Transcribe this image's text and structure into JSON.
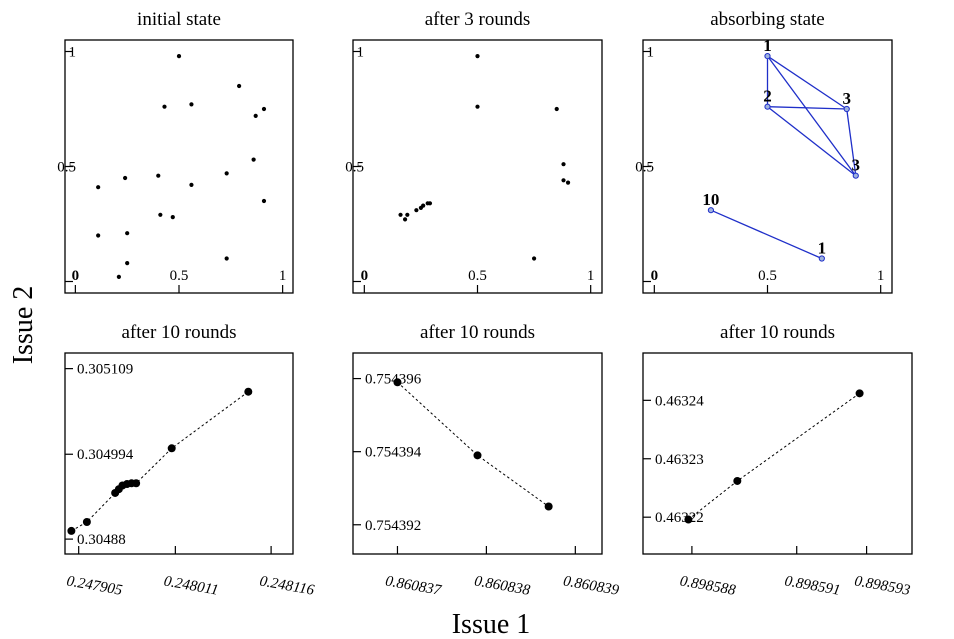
{
  "figure": {
    "xlabel": "Issue 1",
    "ylabel": "Issue 2"
  },
  "style": {
    "background": "#ffffff",
    "axis_color": "#000000",
    "point_color": "#000000",
    "edge_color": "#1f2fc9",
    "node_fill": "#9fb3dd"
  },
  "chart_data": [
    {
      "type": "scatter",
      "title": "initial state",
      "xlim": [
        -0.05,
        1.05
      ],
      "ylim": [
        -0.05,
        1.05
      ],
      "xticks": [
        0,
        0.5,
        1
      ],
      "xtick_labels": [
        "0",
        "0.5",
        "1"
      ],
      "yticks": [
        0,
        0.5,
        1
      ],
      "ytick_labels": [
        "0",
        "0.5",
        "1"
      ],
      "points": [
        [
          0.5,
          0.98
        ],
        [
          0.79,
          0.85
        ],
        [
          0.56,
          0.77
        ],
        [
          0.43,
          0.76
        ],
        [
          0.91,
          0.75
        ],
        [
          0.87,
          0.72
        ],
        [
          0.86,
          0.53
        ],
        [
          0.73,
          0.47
        ],
        [
          0.4,
          0.46
        ],
        [
          0.24,
          0.45
        ],
        [
          0.56,
          0.42
        ],
        [
          0.11,
          0.41
        ],
        [
          0.91,
          0.35
        ],
        [
          0.41,
          0.29
        ],
        [
          0.47,
          0.28
        ],
        [
          0.11,
          0.2
        ],
        [
          0.25,
          0.21
        ],
        [
          0.25,
          0.08
        ],
        [
          0.73,
          0.1
        ],
        [
          0.21,
          0.02
        ]
      ]
    },
    {
      "type": "scatter",
      "title": "after 3 rounds",
      "xlim": [
        -0.05,
        1.05
      ],
      "ylim": [
        -0.05,
        1.05
      ],
      "xticks": [
        0,
        0.5,
        1
      ],
      "xtick_labels": [
        "0",
        "0.5",
        "1"
      ],
      "yticks": [
        0,
        0.5,
        1
      ],
      "ytick_labels": [
        "0",
        "0.5",
        "1"
      ],
      "points": [
        [
          0.5,
          0.98
        ],
        [
          0.5,
          0.76
        ],
        [
          0.85,
          0.75
        ],
        [
          0.88,
          0.51
        ],
        [
          0.88,
          0.44
        ],
        [
          0.9,
          0.43
        ],
        [
          0.16,
          0.29
        ],
        [
          0.18,
          0.27
        ],
        [
          0.19,
          0.29
        ],
        [
          0.23,
          0.31
        ],
        [
          0.25,
          0.32
        ],
        [
          0.26,
          0.33
        ],
        [
          0.28,
          0.34
        ],
        [
          0.29,
          0.34
        ],
        [
          0.75,
          0.1
        ]
      ]
    },
    {
      "type": "network",
      "title": "absorbing state",
      "xlim": [
        -0.05,
        1.05
      ],
      "ylim": [
        -0.05,
        1.05
      ],
      "xticks": [
        0,
        0.5,
        1
      ],
      "xtick_labels": [
        "0",
        "0.5",
        "1"
      ],
      "yticks": [
        0,
        0.5,
        1
      ],
      "ytick_labels": [
        "0",
        "0.5",
        "1"
      ],
      "nodes": [
        {
          "x": 0.5,
          "y": 0.98,
          "label": "1"
        },
        {
          "x": 0.5,
          "y": 0.76,
          "label": "2"
        },
        {
          "x": 0.85,
          "y": 0.75,
          "label": "3"
        },
        {
          "x": 0.89,
          "y": 0.46,
          "label": "3"
        },
        {
          "x": 0.25,
          "y": 0.31,
          "label": "10"
        },
        {
          "x": 0.74,
          "y": 0.1,
          "label": "1"
        }
      ],
      "edges": [
        [
          0,
          1
        ],
        [
          0,
          2
        ],
        [
          0,
          3
        ],
        [
          1,
          2
        ],
        [
          1,
          3
        ],
        [
          2,
          3
        ],
        [
          4,
          5
        ]
      ]
    },
    {
      "type": "scatter",
      "title": "after 10 rounds",
      "xlim": [
        0.24789,
        0.24814
      ],
      "ylim": [
        0.30486,
        0.30513
      ],
      "xticks": [
        0.247905,
        0.248011,
        0.248116
      ],
      "xtick_labels": [
        "0.247905",
        "0.248011",
        "0.248116"
      ],
      "yticks": [
        0.30488,
        0.304994,
        0.305109
      ],
      "ytick_labels": [
        "0.30488",
        "0.304994",
        "0.305109"
      ],
      "connected": true,
      "points": [
        [
          0.247897,
          0.304891
        ],
        [
          0.247914,
          0.304903
        ],
        [
          0.247945,
          0.304942
        ],
        [
          0.247949,
          0.304947
        ],
        [
          0.247953,
          0.304952
        ],
        [
          0.247958,
          0.304954
        ],
        [
          0.247963,
          0.304955
        ],
        [
          0.247968,
          0.304955
        ],
        [
          0.248007,
          0.305002
        ],
        [
          0.248091,
          0.305078
        ]
      ]
    },
    {
      "type": "scatter",
      "title": "after 10 rounds",
      "xlim": [
        0.8608365,
        0.8608393
      ],
      "ylim": [
        0.7543912,
        0.7543967
      ],
      "xticks": [
        0.860837,
        0.860838,
        0.860839
      ],
      "xtick_labels": [
        "0.860837",
        "0.860838",
        "0.860839"
      ],
      "yticks": [
        0.754392,
        0.754394,
        0.754396
      ],
      "ytick_labels": [
        "0.754392",
        "0.754394",
        "0.754396"
      ],
      "connected": true,
      "points": [
        [
          0.860837,
          0.7543959
        ],
        [
          0.8608379,
          0.7543939
        ],
        [
          0.8608387,
          0.7543925
        ]
      ]
    },
    {
      "type": "scatter",
      "title": "after 10 rounds",
      "xlim": [
        0.8985866,
        0.8985943
      ],
      "ylim": [
        0.4632137,
        0.4632481
      ],
      "xticks": [
        0.898588,
        0.898591,
        0.898593
      ],
      "xtick_labels": [
        "0.898588",
        "0.898591",
        "0.898593"
      ],
      "yticks": [
        0.46322,
        0.46323,
        0.46324
      ],
      "ytick_labels": [
        "0.46322",
        "0.46323",
        "0.46324"
      ],
      "connected": true,
      "points": [
        [
          0.8985879,
          0.4632196
        ],
        [
          0.8985893,
          0.4632262
        ],
        [
          0.8985928,
          0.4632412
        ]
      ]
    }
  ]
}
